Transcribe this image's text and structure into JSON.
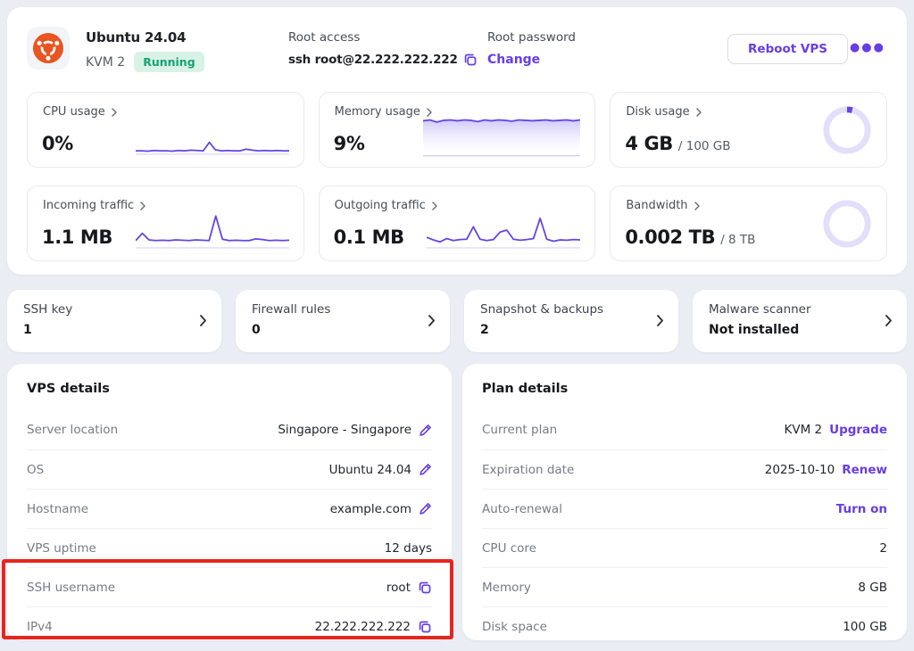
{
  "colors": {
    "accent_purple": "#673de6",
    "chart_purple": "#6644e6",
    "ring_track": "#e3dffa",
    "status_green_text": "#13a372",
    "status_green_bg": "#d8f2e6",
    "ubuntu_orange": "#e95420",
    "annotation_red": "#e7251c",
    "page_background": "#ebedf5"
  },
  "header": {
    "os_title": "Ubuntu 24.04",
    "plan": "KVM 2",
    "status": "Running",
    "root_access_label": "Root access",
    "root_access_value": "ssh root@22.222.222.222",
    "root_password_label": "Root password",
    "change_link": "Change",
    "reboot_button": "Reboot VPS"
  },
  "stats": [
    {
      "label": "CPU usage",
      "value": "0%",
      "suffix": "",
      "spark": [
        8,
        8,
        7,
        9,
        8,
        8,
        7,
        9,
        8,
        10,
        9,
        8,
        34,
        11,
        8,
        9,
        8,
        8,
        13,
        10,
        8,
        9,
        8,
        9,
        8,
        8
      ]
    },
    {
      "label": "Memory usage",
      "value": "9%",
      "suffix": "",
      "spark": [
        78,
        80,
        75,
        79,
        80,
        78,
        80,
        79,
        76,
        80,
        78,
        80,
        79,
        77,
        80,
        79,
        78,
        79,
        80,
        78,
        79,
        80,
        78,
        80
      ]
    },
    {
      "label": "Disk usage",
      "value": "4 GB",
      "suffix": "/ 100 GB",
      "percent": 4
    },
    {
      "label": "Incoming traffic",
      "value": "1.1 MB",
      "suffix": "",
      "spark": [
        20,
        42,
        22,
        20,
        21,
        20,
        22,
        21,
        20,
        22,
        21,
        20,
        95,
        24,
        20,
        21,
        20,
        20,
        25,
        23,
        20,
        21,
        20,
        21
      ]
    },
    {
      "label": "Outgoing traffic",
      "value": "0.1 MB",
      "suffix": "",
      "spark": [
        30,
        22,
        16,
        26,
        20,
        23,
        24,
        62,
        24,
        20,
        23,
        46,
        52,
        24,
        21,
        23,
        26,
        88,
        24,
        18,
        22,
        21,
        23,
        22
      ]
    },
    {
      "label": "Bandwidth",
      "value": "0.002 TB",
      "suffix": "/ 8 TB",
      "percent": 0
    }
  ],
  "quick_links": [
    {
      "label": "SSH key",
      "value": "1"
    },
    {
      "label": "Firewall rules",
      "value": "0"
    },
    {
      "label": "Snapshot & backups",
      "value": "2"
    },
    {
      "label": "Malware scanner",
      "value": "Not installed"
    }
  ],
  "vps_details": {
    "title": "VPS details",
    "rows": [
      {
        "label": "Server location",
        "value": "Singapore - Singapore"
      },
      {
        "label": "OS",
        "value": "Ubuntu 24.04"
      },
      {
        "label": "Hostname",
        "value": "example.com"
      },
      {
        "label": "VPS uptime",
        "value": "12 days"
      },
      {
        "label": "SSH username",
        "value": "root"
      },
      {
        "label": "IPv4",
        "value": "22.222.222.222"
      }
    ]
  },
  "plan_details": {
    "title": "Plan details",
    "rows": [
      {
        "label": "Current plan",
        "value": "KVM 2",
        "link": "Upgrade"
      },
      {
        "label": "Expiration date",
        "value": "2025-10-10",
        "link": "Renew"
      },
      {
        "label": "Auto-renewal",
        "value": "",
        "link": "Turn on"
      },
      {
        "label": "CPU core",
        "value": "2",
        "link": ""
      },
      {
        "label": "Memory",
        "value": "8 GB",
        "link": ""
      },
      {
        "label": "Disk space",
        "value": "100 GB",
        "link": ""
      }
    ]
  }
}
